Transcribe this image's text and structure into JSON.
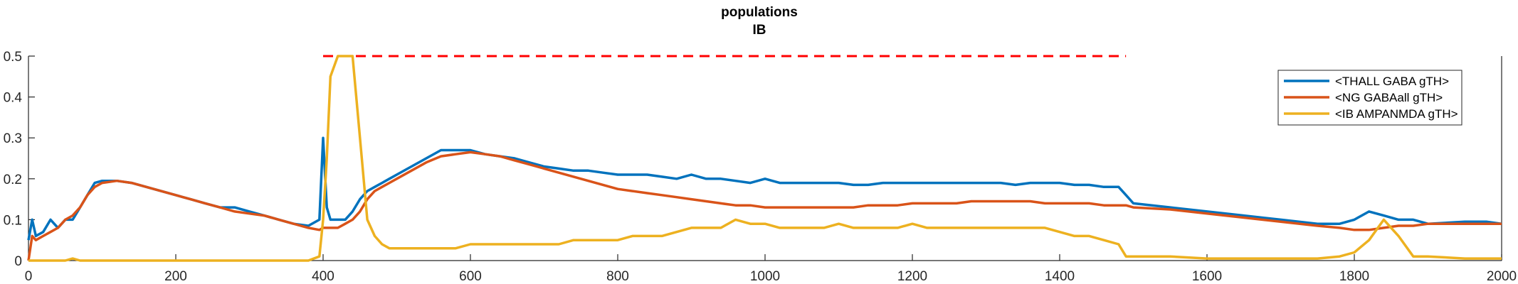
{
  "chart_data": {
    "type": "line",
    "title": [
      "populations",
      "IB"
    ],
    "xlabel": "",
    "ylabel": "",
    "xlim": [
      0,
      2000
    ],
    "ylim": [
      0,
      0.5
    ],
    "xticks": [
      0,
      200,
      400,
      600,
      800,
      1000,
      1200,
      1400,
      1600,
      1800,
      2000
    ],
    "yticks": [
      0,
      0.1,
      0.2,
      0.3,
      0.4,
      0.5
    ],
    "xtick_labels": [
      "0",
      "200",
      "400",
      "600",
      "800",
      "1000",
      "1200",
      "1400",
      "1600",
      "1800",
      "2000"
    ],
    "ytick_labels": [
      "0",
      "0.1",
      "0.2",
      "0.3",
      "0.4",
      "0.5"
    ],
    "grid": false,
    "legend_position": "top-right",
    "reference_line": {
      "y": 0.5,
      "x_start": 400,
      "x_end": 1490,
      "color": "#ff0000",
      "style": "dashed"
    },
    "series": [
      {
        "name": "<THALL GABA gTH>",
        "color": "#0072bd",
        "x": [
          0,
          5,
          10,
          20,
          30,
          40,
          50,
          60,
          70,
          80,
          90,
          100,
          120,
          140,
          160,
          180,
          200,
          220,
          240,
          260,
          280,
          300,
          320,
          340,
          360,
          380,
          395,
          400,
          405,
          410,
          420,
          430,
          440,
          450,
          460,
          470,
          480,
          490,
          500,
          520,
          540,
          560,
          580,
          600,
          620,
          640,
          660,
          680,
          700,
          720,
          740,
          760,
          780,
          800,
          820,
          840,
          860,
          880,
          900,
          920,
          940,
          960,
          980,
          1000,
          1020,
          1040,
          1060,
          1080,
          1100,
          1120,
          1140,
          1160,
          1180,
          1200,
          1220,
          1240,
          1260,
          1280,
          1300,
          1320,
          1340,
          1360,
          1380,
          1400,
          1420,
          1440,
          1460,
          1480,
          1490,
          1500,
          1550,
          1600,
          1650,
          1700,
          1750,
          1780,
          1800,
          1820,
          1840,
          1860,
          1880,
          1900,
          1950,
          1980,
          2000
        ],
        "y": [
          0.05,
          0.1,
          0.06,
          0.07,
          0.1,
          0.08,
          0.1,
          0.1,
          0.13,
          0.16,
          0.19,
          0.195,
          0.195,
          0.19,
          0.18,
          0.17,
          0.16,
          0.15,
          0.14,
          0.13,
          0.13,
          0.12,
          0.11,
          0.1,
          0.09,
          0.085,
          0.1,
          0.3,
          0.13,
          0.1,
          0.1,
          0.1,
          0.12,
          0.15,
          0.17,
          0.18,
          0.19,
          0.2,
          0.21,
          0.23,
          0.25,
          0.27,
          0.27,
          0.27,
          0.26,
          0.255,
          0.25,
          0.24,
          0.23,
          0.225,
          0.22,
          0.22,
          0.215,
          0.21,
          0.21,
          0.21,
          0.205,
          0.2,
          0.21,
          0.2,
          0.2,
          0.195,
          0.19,
          0.2,
          0.19,
          0.19,
          0.19,
          0.19,
          0.19,
          0.185,
          0.185,
          0.19,
          0.19,
          0.19,
          0.19,
          0.19,
          0.19,
          0.19,
          0.19,
          0.19,
          0.185,
          0.19,
          0.19,
          0.19,
          0.185,
          0.185,
          0.18,
          0.18,
          0.16,
          0.14,
          0.13,
          0.12,
          0.11,
          0.1,
          0.09,
          0.09,
          0.1,
          0.12,
          0.11,
          0.1,
          0.1,
          0.09,
          0.095,
          0.095,
          0.09
        ]
      },
      {
        "name": "<NG GABAall gTH>",
        "color": "#d95319",
        "x": [
          0,
          5,
          10,
          20,
          30,
          40,
          50,
          60,
          70,
          80,
          90,
          100,
          120,
          140,
          160,
          180,
          200,
          220,
          240,
          260,
          280,
          300,
          320,
          340,
          360,
          380,
          395,
          400,
          405,
          410,
          420,
          430,
          440,
          450,
          460,
          470,
          480,
          490,
          500,
          520,
          540,
          560,
          580,
          600,
          620,
          640,
          660,
          680,
          700,
          720,
          740,
          760,
          780,
          800,
          820,
          840,
          860,
          880,
          900,
          920,
          940,
          960,
          980,
          1000,
          1020,
          1040,
          1060,
          1080,
          1100,
          1120,
          1140,
          1160,
          1180,
          1200,
          1220,
          1240,
          1260,
          1280,
          1300,
          1320,
          1340,
          1360,
          1380,
          1400,
          1420,
          1440,
          1460,
          1480,
          1490,
          1500,
          1550,
          1600,
          1650,
          1700,
          1750,
          1780,
          1800,
          1820,
          1840,
          1860,
          1880,
          1900,
          1950,
          1980,
          2000
        ],
        "y": [
          0.0,
          0.06,
          0.05,
          0.06,
          0.07,
          0.08,
          0.1,
          0.11,
          0.13,
          0.16,
          0.18,
          0.19,
          0.195,
          0.19,
          0.18,
          0.17,
          0.16,
          0.15,
          0.14,
          0.13,
          0.12,
          0.115,
          0.11,
          0.1,
          0.09,
          0.08,
          0.075,
          0.08,
          0.08,
          0.08,
          0.08,
          0.09,
          0.1,
          0.12,
          0.15,
          0.17,
          0.18,
          0.19,
          0.2,
          0.22,
          0.24,
          0.255,
          0.26,
          0.265,
          0.26,
          0.255,
          0.245,
          0.235,
          0.225,
          0.215,
          0.205,
          0.195,
          0.185,
          0.175,
          0.17,
          0.165,
          0.16,
          0.155,
          0.15,
          0.145,
          0.14,
          0.135,
          0.135,
          0.13,
          0.13,
          0.13,
          0.13,
          0.13,
          0.13,
          0.13,
          0.135,
          0.135,
          0.135,
          0.14,
          0.14,
          0.14,
          0.14,
          0.145,
          0.145,
          0.145,
          0.145,
          0.145,
          0.14,
          0.14,
          0.14,
          0.14,
          0.135,
          0.135,
          0.135,
          0.13,
          0.125,
          0.115,
          0.105,
          0.095,
          0.085,
          0.08,
          0.075,
          0.075,
          0.08,
          0.085,
          0.085,
          0.09,
          0.09,
          0.09,
          0.09
        ]
      },
      {
        "name": "<IB AMPANMDA gTH>",
        "color": "#edb120",
        "x": [
          0,
          5,
          10,
          20,
          30,
          40,
          50,
          60,
          70,
          80,
          90,
          100,
          120,
          140,
          160,
          180,
          200,
          220,
          240,
          260,
          280,
          300,
          320,
          340,
          360,
          380,
          395,
          400,
          405,
          410,
          420,
          430,
          440,
          450,
          460,
          470,
          480,
          490,
          500,
          520,
          540,
          560,
          580,
          600,
          620,
          640,
          660,
          680,
          700,
          720,
          740,
          760,
          780,
          800,
          820,
          840,
          860,
          880,
          900,
          920,
          940,
          960,
          980,
          1000,
          1020,
          1040,
          1060,
          1080,
          1100,
          1120,
          1140,
          1160,
          1180,
          1200,
          1220,
          1240,
          1260,
          1280,
          1300,
          1320,
          1340,
          1360,
          1380,
          1400,
          1420,
          1440,
          1460,
          1480,
          1490,
          1500,
          1550,
          1600,
          1650,
          1700,
          1750,
          1780,
          1800,
          1820,
          1840,
          1860,
          1880,
          1900,
          1950,
          1980,
          2000
        ],
        "y": [
          0.0,
          0.0,
          0.0,
          0.0,
          0.0,
          0.0,
          0.0,
          0.005,
          0.0,
          0.0,
          0.0,
          0.0,
          0.0,
          0.0,
          0.0,
          0.0,
          0.0,
          0.0,
          0.0,
          0.0,
          0.0,
          0.0,
          0.0,
          0.0,
          0.0,
          0.0,
          0.01,
          0.1,
          0.25,
          0.45,
          0.5,
          0.5,
          0.5,
          0.3,
          0.1,
          0.06,
          0.04,
          0.03,
          0.03,
          0.03,
          0.03,
          0.03,
          0.03,
          0.04,
          0.04,
          0.04,
          0.04,
          0.04,
          0.04,
          0.04,
          0.05,
          0.05,
          0.05,
          0.05,
          0.06,
          0.06,
          0.06,
          0.07,
          0.08,
          0.08,
          0.08,
          0.1,
          0.09,
          0.09,
          0.08,
          0.08,
          0.08,
          0.08,
          0.09,
          0.08,
          0.08,
          0.08,
          0.08,
          0.09,
          0.08,
          0.08,
          0.08,
          0.08,
          0.08,
          0.08,
          0.08,
          0.08,
          0.08,
          0.07,
          0.06,
          0.06,
          0.05,
          0.04,
          0.01,
          0.01,
          0.01,
          0.005,
          0.005,
          0.005,
          0.005,
          0.01,
          0.02,
          0.05,
          0.1,
          0.06,
          0.01,
          0.01,
          0.005,
          0.005,
          0.005
        ]
      }
    ]
  }
}
